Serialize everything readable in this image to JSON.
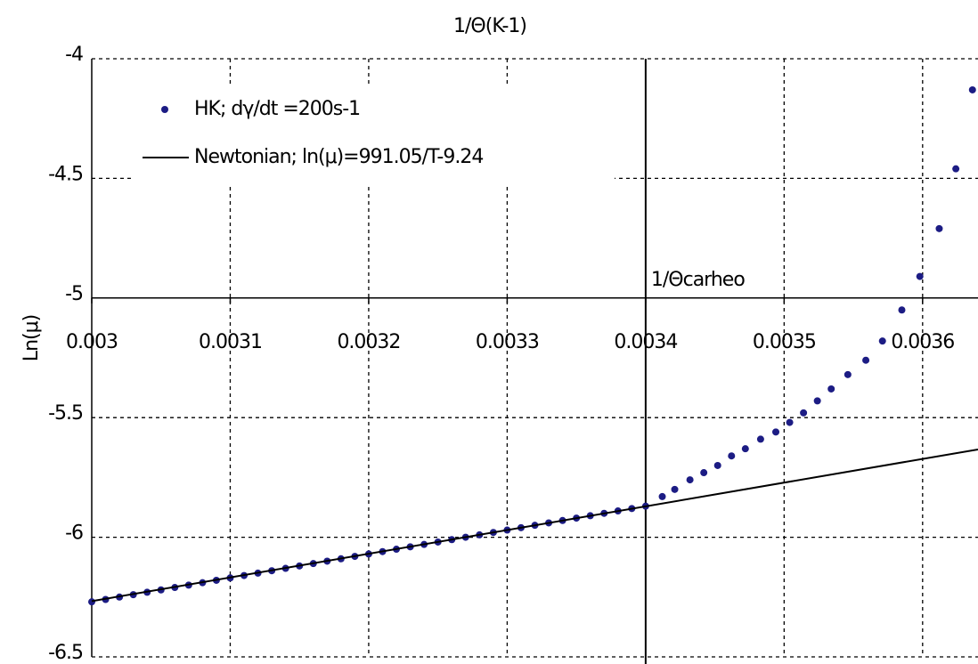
{
  "chart_data": {
    "type": "scatter",
    "title": "1/Θ(K-1)",
    "y_label": "Ln(μ)",
    "xlim": [
      0.003,
      0.00364
    ],
    "ylim": [
      -6.5,
      -4
    ],
    "xticks": [
      0.003,
      0.0031,
      0.0032,
      0.0033,
      0.0034,
      0.0035,
      0.0036
    ],
    "yticks": [
      -4,
      -4.5,
      -5,
      -5.5,
      -6,
      -6.5
    ],
    "grid": true,
    "x_axis_at": -5,
    "legend": "upper left",
    "vline": {
      "x": 0.0034,
      "label": "1/Θcarheo"
    },
    "series": [
      {
        "name": "HK; dγ/dt =200s-1",
        "type": "scatter",
        "color": "#1c1c84",
        "x": [
          0.003,
          0.00301,
          0.00302,
          0.00303,
          0.00304,
          0.00305,
          0.00306,
          0.00307,
          0.00308,
          0.00309,
          0.0031,
          0.00311,
          0.00312,
          0.00313,
          0.00314,
          0.00315,
          0.00316,
          0.00317,
          0.00318,
          0.00319,
          0.0032,
          0.00321,
          0.00322,
          0.00323,
          0.00324,
          0.00325,
          0.00326,
          0.00327,
          0.00328,
          0.00329,
          0.0033,
          0.00331,
          0.00332,
          0.00333,
          0.00334,
          0.00335,
          0.00336,
          0.00337,
          0.00338,
          0.00339,
          0.0034,
          0.003412,
          0.003421,
          0.003432,
          0.003442,
          0.003452,
          0.003462,
          0.003472,
          0.003483,
          0.003494,
          0.003504,
          0.003514,
          0.003524,
          0.003534,
          0.003546,
          0.003559,
          0.003571,
          0.003585,
          0.003598,
          0.003612,
          0.003624,
          0.003636
        ],
        "values": [
          -6.27,
          -6.26,
          -6.25,
          -6.24,
          -6.23,
          -6.22,
          -6.21,
          -6.2,
          -6.19,
          -6.18,
          -6.17,
          -6.16,
          -6.15,
          -6.14,
          -6.13,
          -6.12,
          -6.11,
          -6.1,
          -6.09,
          -6.08,
          -6.07,
          -6.06,
          -6.05,
          -6.04,
          -6.03,
          -6.02,
          -6.01,
          -6.0,
          -5.99,
          -5.98,
          -5.97,
          -5.96,
          -5.95,
          -5.94,
          -5.93,
          -5.92,
          -5.91,
          -5.9,
          -5.89,
          -5.88,
          -5.87,
          -5.83,
          -5.8,
          -5.76,
          -5.73,
          -5.7,
          -5.66,
          -5.63,
          -5.59,
          -5.56,
          -5.52,
          -5.48,
          -5.43,
          -5.38,
          -5.32,
          -5.26,
          -5.18,
          -5.05,
          -4.91,
          -4.71,
          -4.46,
          -4.13
        ]
      },
      {
        "name": "Newtonian; ln(μ)=991.05/T-9.24",
        "type": "line",
        "color": "#000000",
        "x": [
          0.003,
          0.00364
        ],
        "values": [
          -6.267,
          -5.633
        ]
      }
    ]
  }
}
